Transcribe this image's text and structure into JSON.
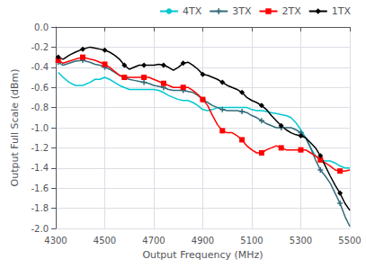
{
  "chart_data": {
    "type": "line",
    "xlabel": "Output Frequency (MHz)",
    "ylabel": "Output Full Scale (dBm)",
    "xlim": [
      4300,
      5500
    ],
    "ylim": [
      -2,
      0
    ],
    "xticks": [
      4300,
      4500,
      4700,
      4900,
      5100,
      5300,
      5500
    ],
    "yticks": [
      {
        "value": 0,
        "label": "0.0"
      },
      -0.2,
      -0.4,
      -0.6,
      -0.8,
      {
        "value": -1.0,
        "label": "-1.0"
      },
      -1.2,
      -1.4,
      -1.6,
      -1.8,
      {
        "value": -2.0,
        "label": "-2.0"
      }
    ],
    "grid": true,
    "legend": "upper right",
    "x": [
      4310,
      4330,
      4355,
      4380,
      4410,
      4440,
      4460,
      4480,
      4500,
      4520,
      4540,
      4560,
      4580,
      4600,
      4620,
      4640,
      4660,
      4680,
      4700,
      4720,
      4740,
      4760,
      4780,
      4800,
      4820,
      4840,
      4860,
      4880,
      4900,
      4920,
      4940,
      4960,
      4980,
      5000,
      5020,
      5040,
      5060,
      5080,
      5100,
      5120,
      5140,
      5160,
      5180,
      5200,
      5220,
      5240,
      5260,
      5280,
      5300,
      5320,
      5340,
      5360,
      5380,
      5400,
      5420,
      5440,
      5460,
      5480,
      5500
    ],
    "series": [
      {
        "name": "4TX",
        "color": "#00c8d2",
        "values": [
          -0.45,
          -0.5,
          -0.55,
          -0.58,
          -0.58,
          -0.55,
          -0.52,
          -0.52,
          -0.5,
          -0.52,
          -0.55,
          -0.58,
          -0.6,
          -0.62,
          -0.62,
          -0.62,
          -0.62,
          -0.62,
          -0.62,
          -0.63,
          -0.65,
          -0.68,
          -0.7,
          -0.72,
          -0.73,
          -0.73,
          -0.75,
          -0.78,
          -0.82,
          -0.83,
          -0.82,
          -0.8,
          -0.8,
          -0.8,
          -0.8,
          -0.8,
          -0.8,
          -0.8,
          -0.82,
          -0.83,
          -0.83,
          -0.84,
          -0.85,
          -0.86,
          -0.87,
          -0.88,
          -0.9,
          -0.95,
          -1.02,
          -1.1,
          -1.2,
          -1.28,
          -1.32,
          -1.33,
          -1.33,
          -1.35,
          -1.38,
          -1.4,
          -1.4
        ]
      },
      {
        "name": "3TX",
        "color": "#336b7a",
        "marker": "plus",
        "values": [
          -0.35,
          -0.38,
          -0.36,
          -0.34,
          -0.33,
          -0.35,
          -0.37,
          -0.38,
          -0.4,
          -0.42,
          -0.45,
          -0.48,
          -0.5,
          -0.52,
          -0.53,
          -0.54,
          -0.55,
          -0.56,
          -0.58,
          -0.59,
          -0.6,
          -0.62,
          -0.63,
          -0.63,
          -0.63,
          -0.64,
          -0.65,
          -0.68,
          -0.72,
          -0.75,
          -0.78,
          -0.8,
          -0.82,
          -0.83,
          -0.83,
          -0.83,
          -0.84,
          -0.85,
          -0.88,
          -0.9,
          -0.93,
          -0.96,
          -0.98,
          -1.0,
          -1.0,
          -1.0,
          -1.0,
          -1.02,
          -1.05,
          -1.1,
          -1.2,
          -1.32,
          -1.42,
          -1.48,
          -1.55,
          -1.65,
          -1.75,
          -1.88,
          -1.98
        ]
      },
      {
        "name": "2TX",
        "color": "#ff0000",
        "marker": "square",
        "values": [
          -0.33,
          -0.36,
          -0.34,
          -0.32,
          -0.3,
          -0.32,
          -0.33,
          -0.35,
          -0.37,
          -0.4,
          -0.44,
          -0.48,
          -0.5,
          -0.5,
          -0.5,
          -0.5,
          -0.5,
          -0.5,
          -0.52,
          -0.54,
          -0.56,
          -0.58,
          -0.6,
          -0.6,
          -0.6,
          -0.6,
          -0.63,
          -0.67,
          -0.72,
          -0.78,
          -0.88,
          -0.97,
          -1.03,
          -1.05,
          -1.05,
          -1.08,
          -1.12,
          -1.18,
          -1.22,
          -1.25,
          -1.25,
          -1.22,
          -1.2,
          -1.18,
          -1.2,
          -1.22,
          -1.22,
          -1.22,
          -1.22,
          -1.22,
          -1.25,
          -1.28,
          -1.32,
          -1.35,
          -1.38,
          -1.42,
          -1.43,
          -1.43,
          -1.42
        ]
      },
      {
        "name": "1TX",
        "color": "#000000",
        "marker": "diamond",
        "values": [
          -0.3,
          -0.32,
          -0.28,
          -0.25,
          -0.22,
          -0.2,
          -0.21,
          -0.22,
          -0.23,
          -0.25,
          -0.28,
          -0.32,
          -0.38,
          -0.42,
          -0.4,
          -0.38,
          -0.38,
          -0.38,
          -0.38,
          -0.37,
          -0.38,
          -0.4,
          -0.43,
          -0.4,
          -0.36,
          -0.35,
          -0.38,
          -0.42,
          -0.47,
          -0.48,
          -0.5,
          -0.52,
          -0.55,
          -0.58,
          -0.6,
          -0.62,
          -0.65,
          -0.7,
          -0.73,
          -0.75,
          -0.78,
          -0.82,
          -0.88,
          -0.93,
          -0.98,
          -1.02,
          -1.05,
          -1.07,
          -1.08,
          -1.1,
          -1.15,
          -1.2,
          -1.28,
          -1.38,
          -1.48,
          -1.57,
          -1.65,
          -1.75,
          -1.82
        ]
      }
    ]
  }
}
